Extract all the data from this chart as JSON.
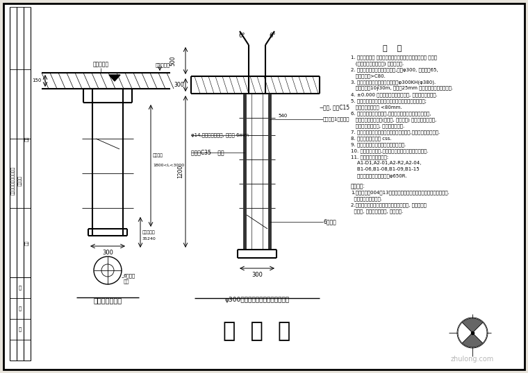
{
  "bg_color": "#e8e4dc",
  "inner_bg": "#ffffff",
  "border_color": "#000000",
  "title_main": "桩  说  明",
  "title_main_fontsize": 20,
  "section_title1": "预制管桩示意图",
  "section_title2": "φ300预制管桩桩头与筏台连接大样",
  "note_title": "说    明",
  "watermark": "zhulong.com"
}
